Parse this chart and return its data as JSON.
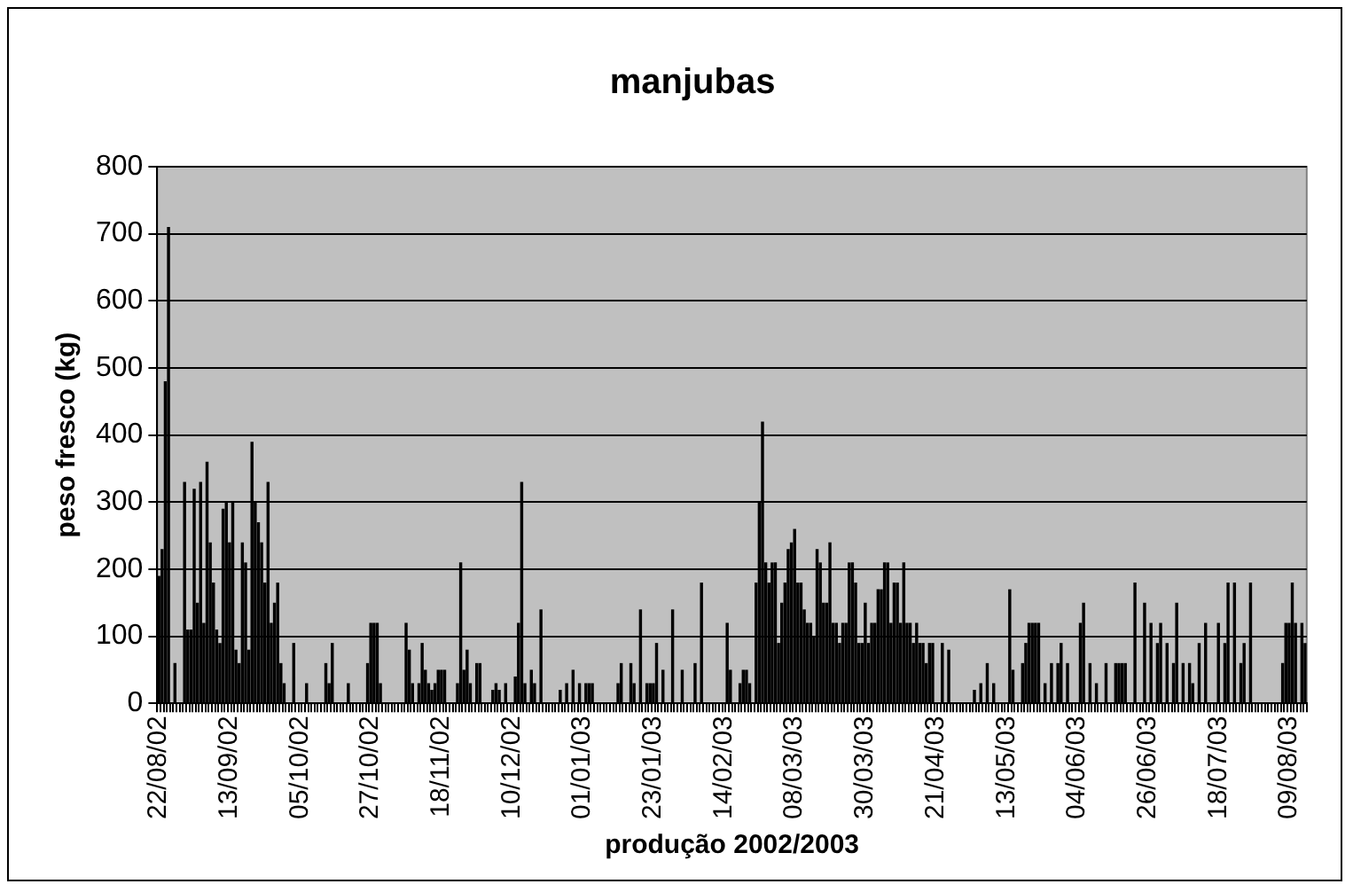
{
  "chart_data": {
    "type": "bar",
    "title": "manjubas",
    "xlabel": "produção 2002/2003",
    "ylabel": "peso fresco (kg)",
    "color": "#000000",
    "ylim": [
      0,
      800
    ],
    "yticks": [
      0,
      100,
      200,
      300,
      400,
      500,
      600,
      700,
      800
    ],
    "grid": "y",
    "categories": [
      "22/08/02",
      null,
      null,
      null,
      null,
      null,
      null,
      null,
      null,
      null,
      null,
      null,
      null,
      null,
      null,
      null,
      null,
      null,
      null,
      null,
      null,
      null,
      "13/09/02",
      null,
      null,
      null,
      null,
      null,
      null,
      null,
      null,
      null,
      null,
      null,
      null,
      null,
      null,
      null,
      null,
      null,
      null,
      null,
      null,
      null,
      "05/10/02",
      null,
      null,
      null,
      null,
      null,
      null,
      null,
      null,
      null,
      null,
      null,
      null,
      null,
      null,
      null,
      null,
      null,
      null,
      null,
      null,
      null,
      "27/10/02",
      null,
      null,
      null,
      null,
      null,
      null,
      null,
      null,
      null,
      null,
      null,
      null,
      null,
      null,
      null,
      null,
      null,
      null,
      null,
      null,
      null,
      "18/11/02",
      null,
      null,
      null,
      null,
      null,
      null,
      null,
      null,
      null,
      null,
      null,
      null,
      null,
      null,
      null,
      null,
      null,
      null,
      null,
      null,
      null,
      "10/12/02",
      null,
      null,
      null,
      null,
      null,
      null,
      null,
      null,
      null,
      null,
      null,
      null,
      null,
      null,
      null,
      null,
      null,
      null,
      null,
      null,
      null,
      "01/01/03",
      null,
      null,
      null,
      null,
      null,
      null,
      null,
      null,
      null,
      null,
      null,
      null,
      null,
      null,
      null,
      null,
      null,
      null,
      null,
      null,
      null,
      "23/01/03",
      null,
      null,
      null,
      null,
      null,
      null,
      null,
      null,
      null,
      null,
      null,
      null,
      null,
      null,
      null,
      null,
      null,
      null,
      null,
      null,
      null,
      "14/02/03",
      null,
      null,
      null,
      null,
      null,
      null,
      null,
      null,
      null,
      null,
      null,
      null,
      null,
      null,
      null,
      null,
      null,
      null,
      null,
      null,
      null,
      "08/03/03",
      null,
      null,
      null,
      null,
      null,
      null,
      null,
      null,
      null,
      null,
      null,
      null,
      null,
      null,
      null,
      null,
      null,
      null,
      null,
      null,
      null,
      "30/03/03",
      null,
      null,
      null,
      null,
      null,
      null,
      null,
      null,
      null,
      null,
      null,
      null,
      null,
      null,
      null,
      null,
      null,
      null,
      null,
      null,
      null,
      "21/04/03",
      null,
      null,
      null,
      null,
      null,
      null,
      null,
      null,
      null,
      null,
      null,
      null,
      null,
      null,
      null,
      null,
      null,
      null,
      null,
      null,
      null,
      "13/05/03",
      null,
      null,
      null,
      null,
      null,
      null,
      null,
      null,
      null,
      null,
      null,
      null,
      null,
      null,
      null,
      null,
      null,
      null,
      null,
      null,
      null,
      "04/06/03",
      null,
      null,
      null,
      null,
      null,
      null,
      null,
      null,
      null,
      null,
      null,
      null,
      null,
      null,
      null,
      null,
      null,
      null,
      null,
      null,
      null,
      "26/06/03",
      null,
      null,
      null,
      null,
      null,
      null,
      null,
      null,
      null,
      null,
      null,
      null,
      null,
      null,
      null,
      null,
      null,
      null,
      null,
      null,
      null,
      "18/07/03",
      null,
      null,
      null,
      null,
      null,
      null,
      null,
      null,
      null,
      null,
      null,
      null,
      null,
      null,
      null,
      null,
      null,
      null,
      null,
      null,
      null,
      "09/08/03",
      null,
      null,
      null,
      null,
      null
    ],
    "values": [
      190,
      230,
      480,
      710,
      0,
      60,
      0,
      0,
      330,
      110,
      110,
      320,
      150,
      330,
      120,
      360,
      240,
      180,
      110,
      90,
      290,
      300,
      240,
      300,
      80,
      60,
      240,
      210,
      80,
      390,
      300,
      270,
      240,
      180,
      330,
      120,
      150,
      180,
      60,
      30,
      0,
      0,
      90,
      0,
      0,
      0,
      30,
      0,
      0,
      0,
      0,
      0,
      60,
      30,
      90,
      0,
      0,
      0,
      0,
      30,
      0,
      0,
      0,
      0,
      0,
      60,
      120,
      120,
      120,
      30,
      0,
      0,
      0,
      0,
      0,
      0,
      0,
      120,
      80,
      30,
      0,
      30,
      90,
      50,
      30,
      20,
      30,
      50,
      50,
      50,
      0,
      0,
      0,
      30,
      210,
      50,
      80,
      30,
      0,
      60,
      60,
      0,
      0,
      0,
      20,
      30,
      20,
      0,
      30,
      0,
      0,
      40,
      120,
      330,
      30,
      0,
      50,
      30,
      0,
      140,
      0,
      0,
      0,
      0,
      0,
      20,
      0,
      30,
      0,
      50,
      0,
      30,
      0,
      30,
      30,
      30,
      0,
      0,
      0,
      0,
      0,
      0,
      0,
      30,
      60,
      0,
      0,
      60,
      30,
      0,
      140,
      0,
      30,
      30,
      30,
      90,
      0,
      50,
      0,
      0,
      140,
      0,
      0,
      50,
      0,
      0,
      0,
      60,
      0,
      180,
      0,
      0,
      0,
      0,
      0,
      0,
      0,
      120,
      50,
      0,
      0,
      30,
      50,
      50,
      30,
      0,
      180,
      300,
      420,
      210,
      180,
      210,
      210,
      90,
      150,
      180,
      230,
      240,
      260,
      180,
      180,
      140,
      120,
      120,
      100,
      230,
      210,
      150,
      150,
      240,
      120,
      120,
      90,
      120,
      120,
      210,
      210,
      180,
      90,
      90,
      150,
      90,
      120,
      120,
      170,
      170,
      210,
      210,
      120,
      180,
      180,
      120,
      210,
      120,
      120,
      90,
      120,
      90,
      90,
      60,
      90,
      90,
      0,
      0,
      90,
      0,
      80,
      0,
      0,
      0,
      0,
      0,
      0,
      0,
      20,
      0,
      30,
      0,
      60,
      0,
      30,
      0,
      0,
      0,
      0,
      170,
      50,
      0,
      0,
      60,
      90,
      120,
      120,
      120,
      120,
      0,
      30,
      0,
      60,
      0,
      60,
      90,
      0,
      60,
      0,
      0,
      0,
      120,
      150,
      0,
      60,
      0,
      30,
      0,
      0,
      60,
      0,
      0,
      60,
      60,
      60,
      60,
      0,
      0,
      180,
      0,
      0,
      150,
      0,
      120,
      0,
      90,
      120,
      0,
      90,
      0,
      60,
      150,
      0,
      60,
      0,
      60,
      30,
      0,
      90,
      0,
      120,
      0,
      0,
      0,
      120,
      0,
      90,
      180,
      0,
      180,
      0,
      60,
      90,
      0,
      180,
      0,
      0,
      0,
      0,
      0,
      0,
      0,
      0,
      0,
      60,
      120,
      120,
      180,
      120,
      0,
      120,
      90
    ]
  }
}
